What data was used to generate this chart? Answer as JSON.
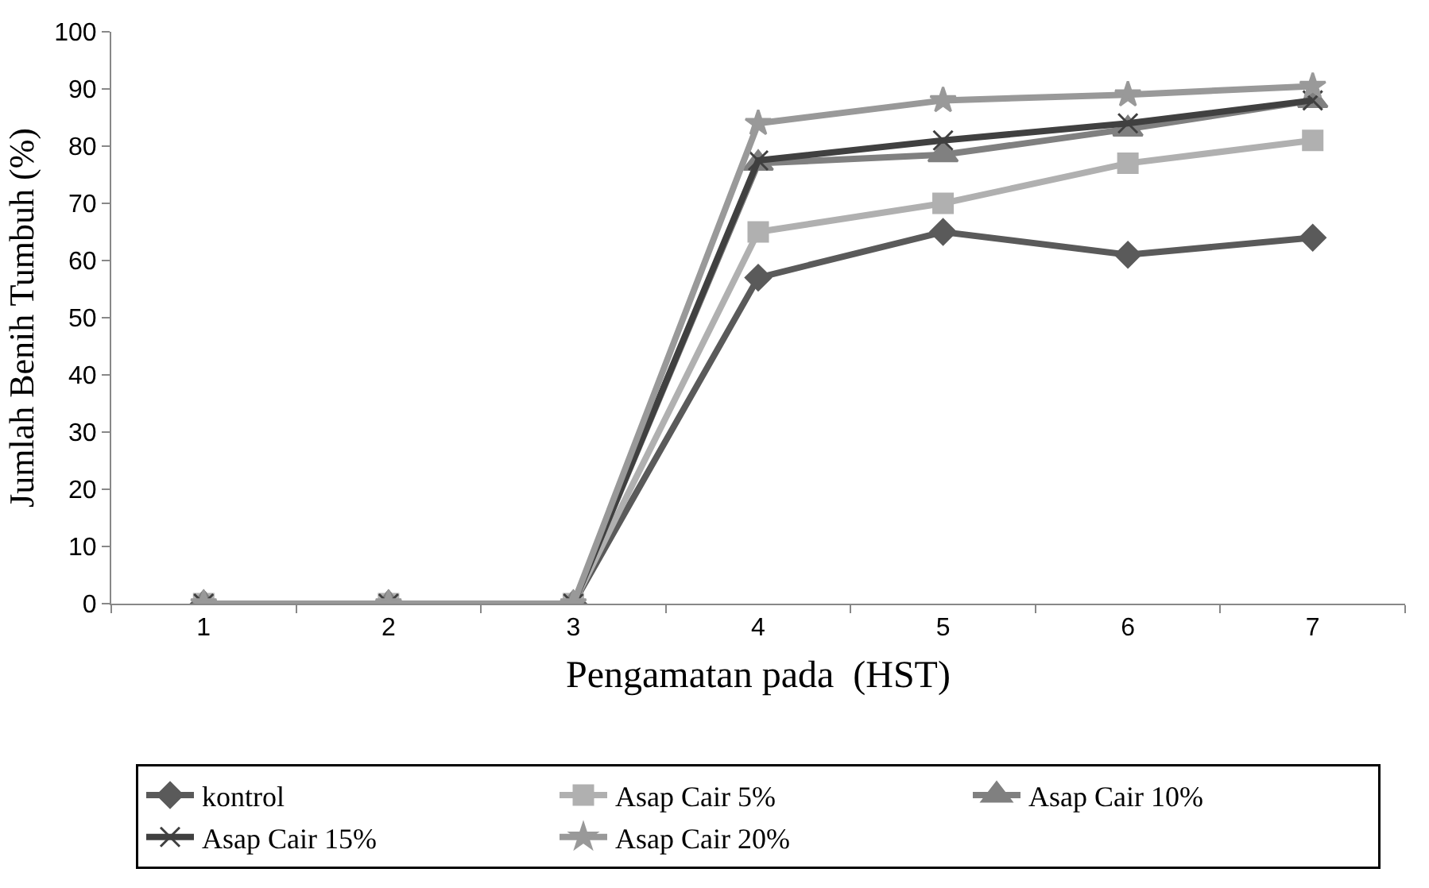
{
  "chart_data": {
    "type": "line",
    "xlabel": "Pengamatan pada  (HST)",
    "ylabel": "Jumlah Benih Tumbuh (%)",
    "categories": [
      "1",
      "2",
      "3",
      "4",
      "5",
      "6",
      "7"
    ],
    "ylim": [
      0,
      100
    ],
    "yticks": [
      0,
      10,
      20,
      30,
      40,
      50,
      60,
      70,
      80,
      90,
      100
    ],
    "grid": false,
    "legend": "bottom",
    "series": [
      {
        "name": "kontrol",
        "color": "#5a5a5a",
        "marker": "diamond",
        "values": [
          0,
          0,
          0,
          57,
          65,
          61,
          64
        ]
      },
      {
        "name": "Asap Cair 5%",
        "color": "#b0b0b0",
        "marker": "square",
        "values": [
          0,
          0,
          0,
          65,
          70,
          77,
          81
        ]
      },
      {
        "name": "Asap Cair 10%",
        "color": "#808080",
        "marker": "triangle",
        "values": [
          0,
          0,
          0,
          77,
          78.5,
          83,
          88
        ]
      },
      {
        "name": "Asap Cair 15%",
        "color": "#404040",
        "marker": "cross",
        "values": [
          0,
          0,
          0,
          77.5,
          81,
          84,
          88
        ]
      },
      {
        "name": "Asap Cair 20%",
        "color": "#999999",
        "marker": "star",
        "values": [
          0,
          0,
          0,
          84,
          88,
          89,
          90.5
        ]
      }
    ]
  }
}
